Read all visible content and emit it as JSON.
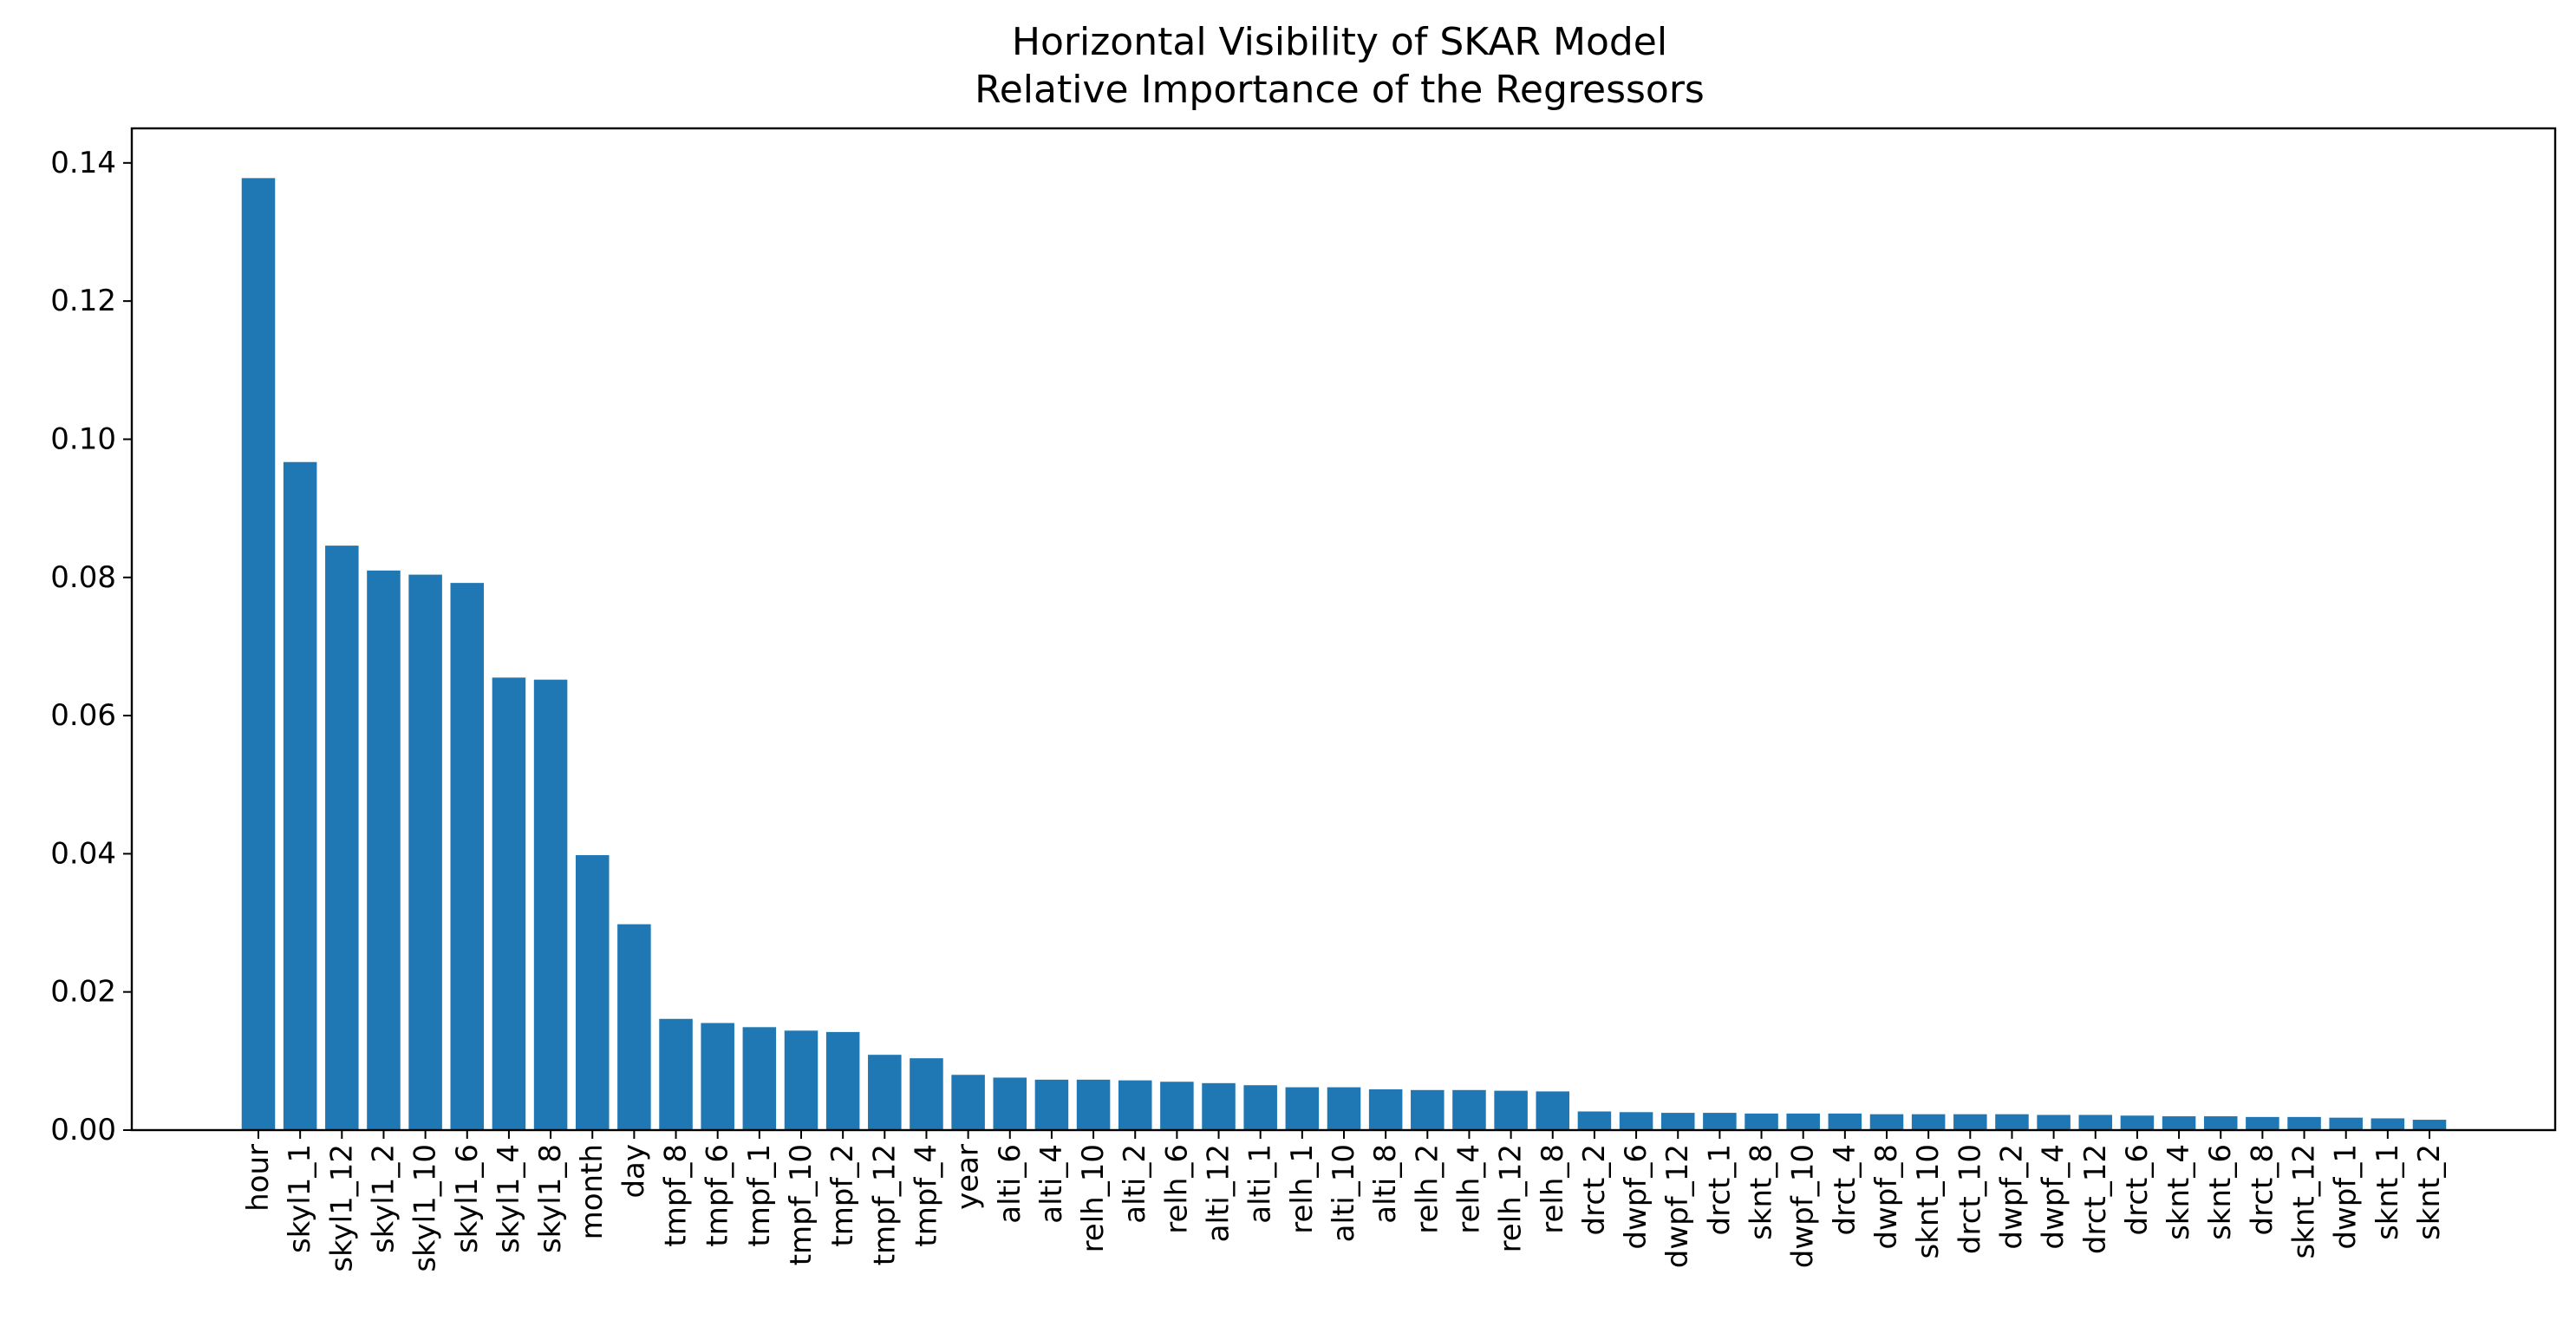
{
  "chart_data": {
    "type": "bar",
    "title": "Horizontal Visibility of SKAR Model",
    "subtitle": "Relative Importance of the Regressors",
    "xlabel": "",
    "ylabel": "",
    "ylim": [
      0,
      0.145
    ],
    "yticks": [
      "0.00",
      "0.02",
      "0.04",
      "0.06",
      "0.08",
      "0.10",
      "0.12",
      "0.14"
    ],
    "ytick_values": [
      0,
      0.02,
      0.04,
      0.06,
      0.08,
      0.1,
      0.12,
      0.14
    ],
    "bar_color": "#1f77b4",
    "grid": false,
    "categories": [
      "hour",
      "skyl1_1",
      "skyl1_12",
      "skyl1_2",
      "skyl1_10",
      "skyl1_6",
      "skyl1_4",
      "skyl1_8",
      "month",
      "day",
      "tmpf_8",
      "tmpf_6",
      "tmpf_1",
      "tmpf_10",
      "tmpf_2",
      "tmpf_12",
      "tmpf_4",
      "year",
      "alti_6",
      "alti_4",
      "relh_10",
      "alti_2",
      "relh_6",
      "alti_12",
      "alti_1",
      "relh_1",
      "alti_10",
      "alti_8",
      "relh_2",
      "relh_4",
      "relh_12",
      "relh_8",
      "drct_2",
      "dwpf_6",
      "dwpf_12",
      "drct_1",
      "sknt_8",
      "dwpf_10",
      "drct_4",
      "dwpf_8",
      "sknt_10",
      "drct_10",
      "dwpf_2",
      "dwpf_4",
      "drct_12",
      "drct_6",
      "sknt_4",
      "sknt_6",
      "drct_8",
      "sknt_12",
      "dwpf_1",
      "sknt_1",
      "sknt_2"
    ],
    "values": [
      0.1378,
      0.0967,
      0.0846,
      0.081,
      0.0804,
      0.0792,
      0.0655,
      0.0652,
      0.0398,
      0.0298,
      0.0161,
      0.0155,
      0.0149,
      0.0144,
      0.0142,
      0.0109,
      0.0104,
      0.008,
      0.0076,
      0.0073,
      0.0073,
      0.0072,
      0.007,
      0.0068,
      0.0065,
      0.0062,
      0.0062,
      0.0059,
      0.0058,
      0.0058,
      0.0057,
      0.0056,
      0.0027,
      0.0026,
      0.0025,
      0.0025,
      0.0024,
      0.0024,
      0.0024,
      0.0023,
      0.0023,
      0.0023,
      0.0023,
      0.0022,
      0.0022,
      0.0021,
      0.002,
      0.002,
      0.0019,
      0.0019,
      0.0018,
      0.0017,
      0.0015
    ]
  }
}
